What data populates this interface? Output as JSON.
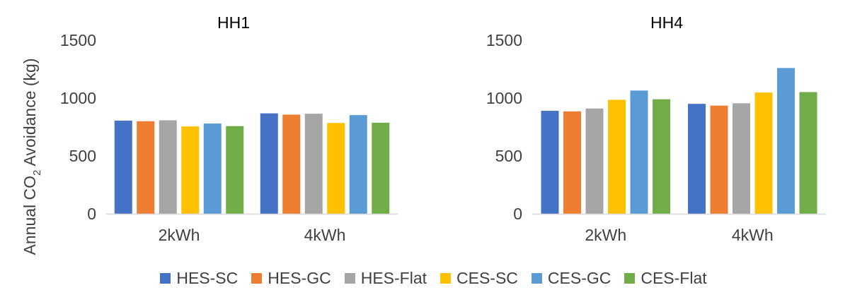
{
  "shared": {
    "ylabel_prefix": "Annual CO",
    "ylabel_sub": "2",
    "ylabel_suffix": " Avoidance (kg)"
  },
  "legend": [
    {
      "name": "HES-SC",
      "color": "#4472C4"
    },
    {
      "name": "HES-GC",
      "color": "#ED7D31"
    },
    {
      "name": "HES-Flat",
      "color": "#A5A5A5"
    },
    {
      "name": "CES-SC",
      "color": "#FFC000"
    },
    {
      "name": "CES-GC",
      "color": "#5B9BD5"
    },
    {
      "name": "CES-Flat",
      "color": "#70AD47"
    }
  ],
  "chart_data": [
    {
      "type": "bar",
      "title": "HH1",
      "categories": [
        "2kWh",
        "4kWh"
      ],
      "ylabel": "Annual CO2 Avoidance (kg)",
      "ylim": [
        0,
        1500
      ],
      "yticks": [
        0,
        500,
        1000,
        1500
      ],
      "grid": false,
      "legend_position": "bottom",
      "series": [
        {
          "name": "HES-SC",
          "values": [
            805,
            868
          ]
        },
        {
          "name": "HES-GC",
          "values": [
            800,
            857
          ]
        },
        {
          "name": "HES-Flat",
          "values": [
            808,
            865
          ]
        },
        {
          "name": "CES-SC",
          "values": [
            755,
            785
          ]
        },
        {
          "name": "CES-GC",
          "values": [
            780,
            853
          ]
        },
        {
          "name": "CES-Flat",
          "values": [
            758,
            787
          ]
        }
      ]
    },
    {
      "type": "bar",
      "title": "HH4",
      "categories": [
        "2kWh",
        "4kWh"
      ],
      "ylabel": "Annual CO2 Avoidance (kg)",
      "ylim": [
        0,
        1500
      ],
      "yticks": [
        0,
        500,
        1000,
        1500
      ],
      "grid": false,
      "legend_position": "bottom",
      "series": [
        {
          "name": "HES-SC",
          "values": [
            890,
            950
          ]
        },
        {
          "name": "HES-GC",
          "values": [
            885,
            935
          ]
        },
        {
          "name": "HES-Flat",
          "values": [
            910,
            955
          ]
        },
        {
          "name": "CES-SC",
          "values": [
            985,
            1048
          ]
        },
        {
          "name": "CES-GC",
          "values": [
            1065,
            1260
          ]
        },
        {
          "name": "CES-Flat",
          "values": [
            990,
            1052
          ]
        }
      ]
    }
  ]
}
